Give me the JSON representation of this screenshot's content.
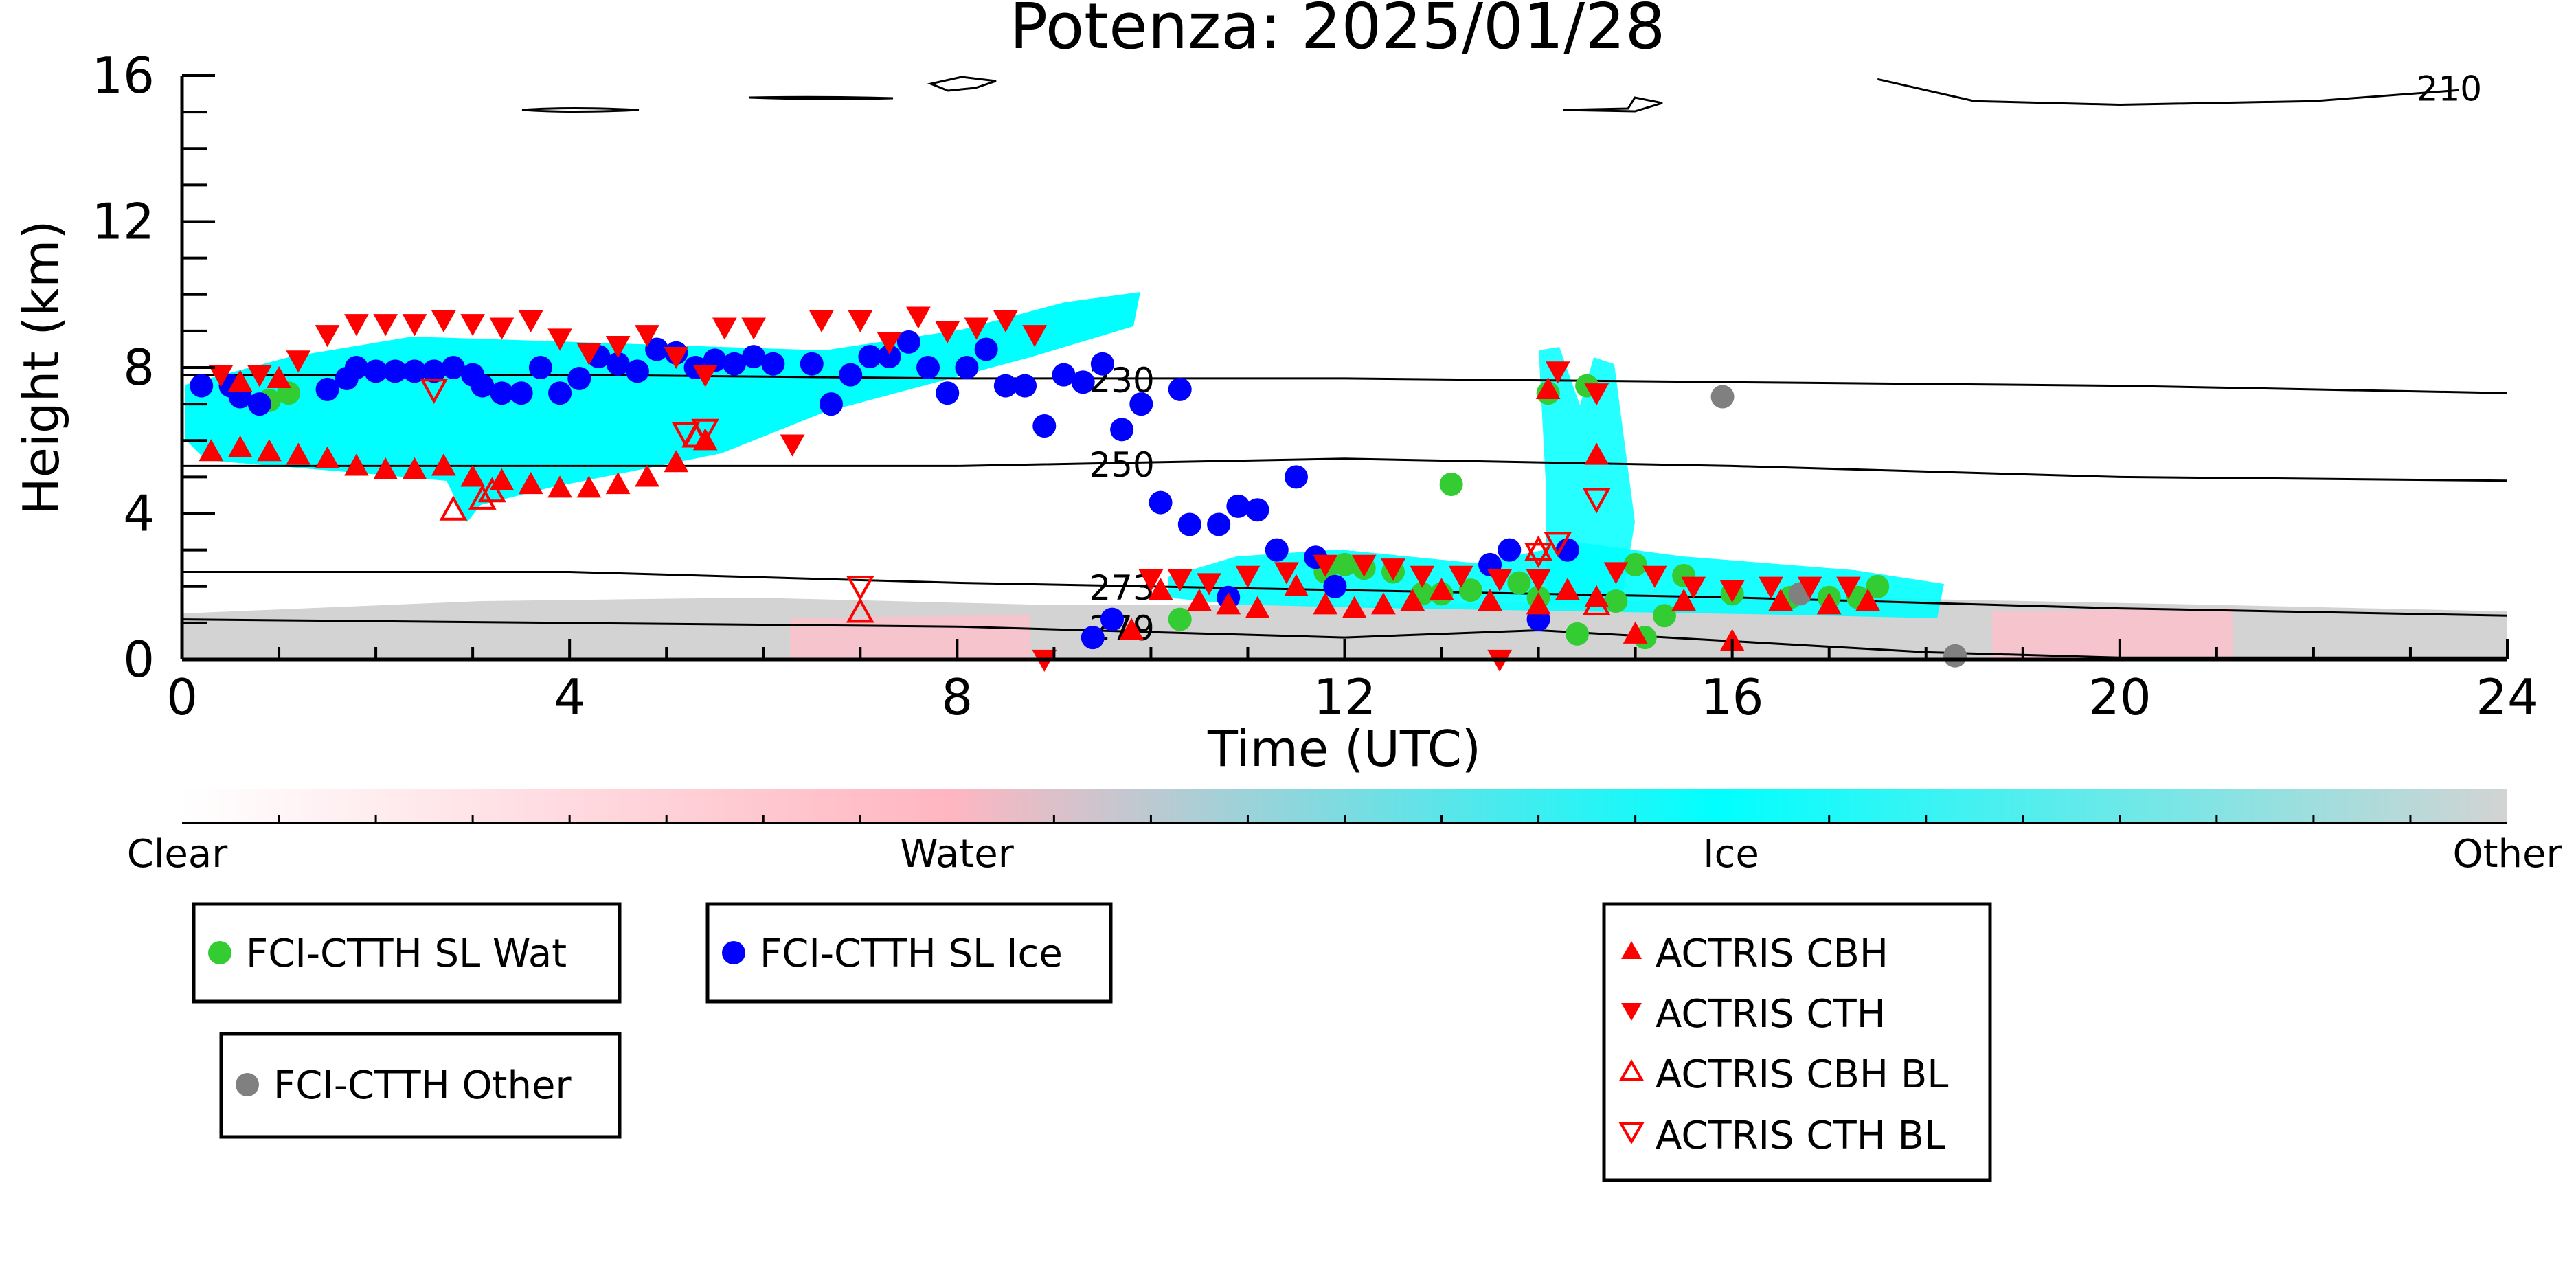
{
  "chart_data": {
    "type": "scatter",
    "title": "Potenza: 2025/01/28",
    "xlabel": "Time (UTC)",
    "ylabel": "Height (km)",
    "xlim": [
      0,
      24
    ],
    "ylim": [
      0,
      16
    ],
    "x_ticks": [
      "0",
      "4",
      "8",
      "12",
      "16",
      "20",
      "24"
    ],
    "y_ticks": [
      "0",
      "4",
      "8",
      "12",
      "16"
    ],
    "colorbar": {
      "labels": [
        "Clear",
        "Water",
        "Ice",
        "Other"
      ],
      "colors": [
        "#ffffff",
        "#ffb6c1",
        "#00ffff",
        "#d3d3d3"
      ]
    },
    "contours": [
      {
        "label": "210",
        "points": [
          [
            17.5,
            15.9
          ],
          [
            18.5,
            15.3
          ],
          [
            20,
            15.2
          ],
          [
            22,
            15.3
          ],
          [
            23.5,
            15.6
          ]
        ]
      },
      {
        "label": "230",
        "points": [
          [
            0,
            7.8
          ],
          [
            4,
            7.8
          ],
          [
            8,
            7.7
          ],
          [
            12,
            7.7
          ],
          [
            16,
            7.6
          ],
          [
            20,
            7.5
          ],
          [
            24,
            7.3
          ]
        ]
      },
      {
        "label": "250",
        "points": [
          [
            0,
            5.3
          ],
          [
            4,
            5.3
          ],
          [
            8,
            5.3
          ],
          [
            12,
            5.5
          ],
          [
            16,
            5.3
          ],
          [
            20,
            5.0
          ],
          [
            24,
            4.9
          ]
        ]
      },
      {
        "label": "273",
        "points": [
          [
            0,
            2.4
          ],
          [
            4,
            2.4
          ],
          [
            8,
            2.1
          ],
          [
            12,
            1.9
          ],
          [
            16,
            1.7
          ],
          [
            20,
            1.4
          ],
          [
            24,
            1.2
          ]
        ]
      },
      {
        "label": "279",
        "points": [
          [
            0,
            1.1
          ],
          [
            4,
            1.0
          ],
          [
            8,
            0.9
          ],
          [
            12,
            0.6
          ],
          [
            14,
            0.8
          ],
          [
            16,
            0.5
          ],
          [
            18,
            0.2
          ],
          [
            20,
            0.05
          ],
          [
            24,
            0.05
          ]
        ]
      }
    ],
    "series": [
      {
        "name": "FCI-CTTH SL Wat",
        "marker": "circle",
        "color": "#33cc33",
        "points": [
          [
            0.9,
            7.1
          ],
          [
            1.1,
            7.3
          ],
          [
            10.3,
            1.1
          ],
          [
            11.8,
            2.4
          ],
          [
            12.0,
            2.6
          ],
          [
            12.2,
            2.5
          ],
          [
            12.5,
            2.4
          ],
          [
            12.8,
            1.8
          ],
          [
            13.0,
            1.8
          ],
          [
            13.3,
            1.9
          ],
          [
            13.1,
            4.8
          ],
          [
            13.8,
            2.1
          ],
          [
            14.0,
            1.7
          ],
          [
            14.1,
            7.3
          ],
          [
            14.5,
            7.5
          ],
          [
            14.4,
            0.7
          ],
          [
            14.8,
            1.6
          ],
          [
            15.0,
            2.6
          ],
          [
            15.1,
            0.6
          ],
          [
            15.3,
            1.2
          ],
          [
            15.5,
            2.3
          ],
          [
            16.0,
            1.8
          ],
          [
            16.6,
            1.7
          ],
          [
            17.0,
            1.7
          ],
          [
            17.3,
            1.7
          ],
          [
            17.5,
            2.0
          ]
        ]
      },
      {
        "name": "FCI-CTTH SL Ice",
        "marker": "circle",
        "color": "#0000ff",
        "points": [
          [
            0.2,
            7.5
          ],
          [
            0.5,
            7.5
          ],
          [
            0.6,
            7.2
          ],
          [
            0.8,
            7.0
          ],
          [
            1.5,
            7.4
          ],
          [
            1.7,
            7.7
          ],
          [
            1.8,
            8.0
          ],
          [
            2.0,
            7.9
          ],
          [
            2.2,
            7.9
          ],
          [
            2.4,
            7.9
          ],
          [
            2.6,
            7.9
          ],
          [
            2.8,
            8.0
          ],
          [
            3.0,
            7.8
          ],
          [
            3.1,
            7.5
          ],
          [
            3.3,
            7.3
          ],
          [
            3.5,
            7.3
          ],
          [
            3.7,
            8.0
          ],
          [
            3.9,
            7.3
          ],
          [
            4.1,
            7.7
          ],
          [
            4.3,
            8.3
          ],
          [
            4.5,
            8.1
          ],
          [
            4.7,
            7.9
          ],
          [
            4.9,
            8.5
          ],
          [
            5.1,
            8.4
          ],
          [
            5.3,
            8.0
          ],
          [
            5.5,
            8.2
          ],
          [
            5.7,
            8.1
          ],
          [
            5.9,
            8.3
          ],
          [
            6.1,
            8.1
          ],
          [
            6.5,
            8.1
          ],
          [
            6.7,
            7.0
          ],
          [
            6.9,
            7.8
          ],
          [
            7.1,
            8.3
          ],
          [
            7.3,
            8.3
          ],
          [
            7.5,
            8.7
          ],
          [
            7.7,
            8.0
          ],
          [
            7.9,
            7.3
          ],
          [
            8.1,
            8.0
          ],
          [
            8.3,
            8.5
          ],
          [
            8.5,
            7.5
          ],
          [
            8.7,
            7.5
          ],
          [
            8.9,
            6.4
          ],
          [
            9.1,
            7.8
          ],
          [
            9.3,
            7.6
          ],
          [
            9.5,
            8.1
          ],
          [
            9.7,
            6.3
          ],
          [
            9.9,
            7.0
          ],
          [
            10.3,
            7.4
          ],
          [
            9.4,
            0.6
          ],
          [
            9.6,
            1.1
          ],
          [
            10.1,
            4.3
          ],
          [
            10.4,
            3.7
          ],
          [
            10.7,
            3.7
          ],
          [
            10.9,
            4.2
          ],
          [
            11.1,
            4.1
          ],
          [
            11.3,
            3.0
          ],
          [
            11.5,
            5.0
          ],
          [
            11.7,
            2.8
          ],
          [
            11.9,
            2.0
          ],
          [
            10.8,
            1.7
          ],
          [
            13.5,
            2.6
          ],
          [
            13.7,
            3.0
          ],
          [
            14.0,
            1.1
          ],
          [
            14.3,
            3.0
          ]
        ]
      },
      {
        "name": "FCI-CTTH Other",
        "marker": "circle",
        "color": "#808080",
        "points": [
          [
            15.9,
            7.2
          ],
          [
            16.7,
            1.8
          ],
          [
            18.3,
            0.1
          ]
        ]
      },
      {
        "name": "ACTRIS CBH",
        "marker": "triangle-up",
        "color": "#ff0000",
        "points": [
          [
            0.3,
            5.7
          ],
          [
            0.6,
            5.8
          ],
          [
            0.9,
            5.7
          ],
          [
            1.2,
            5.6
          ],
          [
            1.5,
            5.5
          ],
          [
            1.8,
            5.3
          ],
          [
            2.1,
            5.2
          ],
          [
            2.4,
            5.2
          ],
          [
            2.7,
            5.3
          ],
          [
            3.0,
            5.0
          ],
          [
            3.3,
            4.9
          ],
          [
            3.6,
            4.8
          ],
          [
            3.9,
            4.7
          ],
          [
            4.2,
            4.7
          ],
          [
            4.5,
            4.8
          ],
          [
            4.8,
            5.0
          ],
          [
            5.1,
            5.4
          ],
          [
            5.4,
            6.0
          ],
          [
            0.6,
            7.6
          ],
          [
            1.0,
            7.7
          ],
          [
            9.8,
            0.8
          ],
          [
            10.1,
            1.9
          ],
          [
            10.5,
            1.6
          ],
          [
            10.8,
            1.5
          ],
          [
            11.1,
            1.4
          ],
          [
            11.5,
            2.0
          ],
          [
            11.8,
            1.5
          ],
          [
            12.1,
            1.4
          ],
          [
            12.4,
            1.5
          ],
          [
            12.7,
            1.6
          ],
          [
            13.0,
            1.9
          ],
          [
            13.5,
            1.6
          ],
          [
            14.0,
            1.5
          ],
          [
            14.3,
            1.9
          ],
          [
            14.6,
            1.7
          ],
          [
            14.1,
            7.4
          ],
          [
            14.6,
            5.6
          ],
          [
            15.0,
            0.7
          ],
          [
            15.5,
            1.6
          ],
          [
            16.0,
            0.5
          ],
          [
            16.5,
            1.6
          ],
          [
            17.0,
            1.5
          ],
          [
            17.4,
            1.6
          ]
        ]
      },
      {
        "name": "ACTRIS CTH",
        "marker": "triangle-down",
        "color": "#ff0000",
        "points": [
          [
            0.4,
            7.8
          ],
          [
            0.8,
            7.8
          ],
          [
            1.2,
            8.2
          ],
          [
            1.5,
            8.9
          ],
          [
            1.8,
            9.2
          ],
          [
            2.1,
            9.2
          ],
          [
            2.4,
            9.2
          ],
          [
            2.7,
            9.3
          ],
          [
            3.0,
            9.2
          ],
          [
            3.3,
            9.1
          ],
          [
            3.6,
            9.3
          ],
          [
            3.9,
            8.8
          ],
          [
            4.2,
            8.4
          ],
          [
            4.5,
            8.6
          ],
          [
            4.8,
            8.9
          ],
          [
            5.1,
            8.3
          ],
          [
            5.4,
            7.8
          ],
          [
            5.6,
            9.1
          ],
          [
            5.9,
            9.1
          ],
          [
            6.3,
            5.9
          ],
          [
            6.6,
            9.3
          ],
          [
            7.0,
            9.3
          ],
          [
            7.3,
            8.7
          ],
          [
            7.6,
            9.4
          ],
          [
            7.9,
            9.0
          ],
          [
            8.2,
            9.1
          ],
          [
            8.5,
            9.3
          ],
          [
            8.8,
            8.9
          ],
          [
            10.0,
            2.2
          ],
          [
            10.3,
            2.2
          ],
          [
            10.6,
            2.1
          ],
          [
            11.0,
            2.3
          ],
          [
            11.4,
            2.4
          ],
          [
            11.8,
            2.6
          ],
          [
            12.2,
            2.6
          ],
          [
            12.5,
            2.5
          ],
          [
            12.8,
            2.3
          ],
          [
            13.2,
            2.3
          ],
          [
            13.6,
            2.2
          ],
          [
            14.0,
            2.2
          ],
          [
            14.2,
            7.9
          ],
          [
            14.6,
            7.3
          ],
          [
            14.8,
            2.4
          ],
          [
            15.2,
            2.3
          ],
          [
            15.6,
            2.0
          ],
          [
            16.0,
            1.9
          ],
          [
            16.4,
            2.0
          ],
          [
            16.8,
            2.0
          ],
          [
            17.2,
            2.0
          ],
          [
            8.9,
            0.0
          ],
          [
            13.6,
            0.0
          ]
        ]
      },
      {
        "name": "ACTRIS CBH BL",
        "marker": "triangle-up-open",
        "color": "#ff0000",
        "points": [
          [
            2.8,
            4.1
          ],
          [
            3.1,
            4.4
          ],
          [
            3.2,
            4.6
          ],
          [
            5.3,
            6.1
          ],
          [
            7.0,
            1.3
          ],
          [
            14.0,
            3.0
          ],
          [
            14.6,
            1.5
          ]
        ]
      },
      {
        "name": "ACTRIS CTH BL",
        "marker": "triangle-down-open",
        "color": "#ff0000",
        "points": [
          [
            2.6,
            7.4
          ],
          [
            5.2,
            6.2
          ],
          [
            5.4,
            6.3
          ],
          [
            7.0,
            2.0
          ],
          [
            14.2,
            3.2
          ],
          [
            14.6,
            4.4
          ],
          [
            14.0,
            2.9
          ]
        ]
      }
    ]
  }
}
